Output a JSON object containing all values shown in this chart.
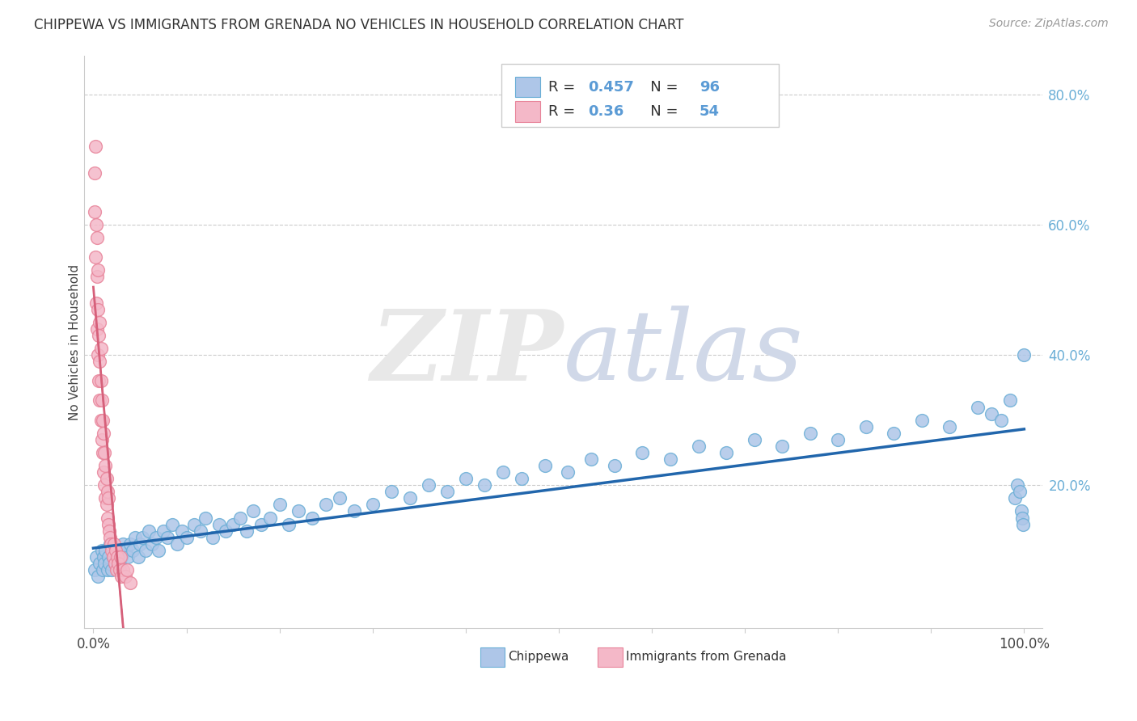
{
  "title": "CHIPPEWA VS IMMIGRANTS FROM GRENADA NO VEHICLES IN HOUSEHOLD CORRELATION CHART",
  "source_text": "Source: ZipAtlas.com",
  "ylabel": "No Vehicles in Household",
  "watermark": "ZIPatlas",
  "xlim": [
    -0.01,
    1.02
  ],
  "ylim": [
    -0.02,
    0.86
  ],
  "xticks": [
    0.0,
    0.1,
    0.2,
    0.3,
    0.4,
    0.5,
    0.6,
    0.7,
    0.8,
    0.9,
    1.0
  ],
  "xticklabels": [
    "0.0%",
    "",
    "",
    "",
    "",
    "",
    "",
    "",
    "",
    "",
    "100.0%"
  ],
  "yticks_right": [
    0.2,
    0.4,
    0.6,
    0.8
  ],
  "yticklabels_right": [
    "20.0%",
    "40.0%",
    "60.0%",
    "80.0%"
  ],
  "chippewa_color": "#aec6e8",
  "chippewa_edge_color": "#6aaed6",
  "grenada_color": "#f4b8c8",
  "grenada_edge_color": "#e8849a",
  "trend_blue": "#2166ac",
  "trend_pink": "#d6607a",
  "R_chippewa": 0.457,
  "N_chippewa": 96,
  "R_grenada": 0.36,
  "N_grenada": 54,
  "chippewa_x": [
    0.001,
    0.003,
    0.005,
    0.007,
    0.009,
    0.01,
    0.011,
    0.012,
    0.013,
    0.015,
    0.016,
    0.017,
    0.018,
    0.02,
    0.021,
    0.022,
    0.023,
    0.025,
    0.027,
    0.028,
    0.03,
    0.032,
    0.035,
    0.037,
    0.04,
    0.042,
    0.045,
    0.048,
    0.05,
    0.053,
    0.056,
    0.06,
    0.063,
    0.067,
    0.07,
    0.075,
    0.08,
    0.085,
    0.09,
    0.095,
    0.1,
    0.108,
    0.115,
    0.12,
    0.128,
    0.135,
    0.142,
    0.15,
    0.158,
    0.165,
    0.172,
    0.18,
    0.19,
    0.2,
    0.21,
    0.22,
    0.235,
    0.25,
    0.265,
    0.28,
    0.3,
    0.32,
    0.34,
    0.36,
    0.38,
    0.4,
    0.42,
    0.44,
    0.46,
    0.485,
    0.51,
    0.535,
    0.56,
    0.59,
    0.62,
    0.65,
    0.68,
    0.71,
    0.74,
    0.77,
    0.8,
    0.83,
    0.86,
    0.89,
    0.92,
    0.95,
    0.965,
    0.975,
    0.985,
    0.99,
    0.993,
    0.995,
    0.997,
    0.998,
    0.999,
    1.0
  ],
  "chippewa_y": [
    0.07,
    0.09,
    0.06,
    0.08,
    0.1,
    0.07,
    0.09,
    0.08,
    0.1,
    0.07,
    0.09,
    0.08,
    0.11,
    0.07,
    0.09,
    0.1,
    0.08,
    0.09,
    0.1,
    0.08,
    0.09,
    0.11,
    0.1,
    0.09,
    0.11,
    0.1,
    0.12,
    0.09,
    0.11,
    0.12,
    0.1,
    0.13,
    0.11,
    0.12,
    0.1,
    0.13,
    0.12,
    0.14,
    0.11,
    0.13,
    0.12,
    0.14,
    0.13,
    0.15,
    0.12,
    0.14,
    0.13,
    0.14,
    0.15,
    0.13,
    0.16,
    0.14,
    0.15,
    0.17,
    0.14,
    0.16,
    0.15,
    0.17,
    0.18,
    0.16,
    0.17,
    0.19,
    0.18,
    0.2,
    0.19,
    0.21,
    0.2,
    0.22,
    0.21,
    0.23,
    0.22,
    0.24,
    0.23,
    0.25,
    0.24,
    0.26,
    0.25,
    0.27,
    0.26,
    0.28,
    0.27,
    0.29,
    0.28,
    0.3,
    0.29,
    0.32,
    0.31,
    0.3,
    0.33,
    0.18,
    0.2,
    0.19,
    0.16,
    0.15,
    0.14,
    0.4
  ],
  "grenada_x": [
    0.001,
    0.001,
    0.002,
    0.002,
    0.003,
    0.003,
    0.004,
    0.004,
    0.004,
    0.005,
    0.005,
    0.005,
    0.006,
    0.006,
    0.007,
    0.007,
    0.007,
    0.008,
    0.008,
    0.008,
    0.009,
    0.009,
    0.01,
    0.01,
    0.011,
    0.011,
    0.012,
    0.012,
    0.013,
    0.013,
    0.014,
    0.014,
    0.015,
    0.015,
    0.016,
    0.016,
    0.017,
    0.018,
    0.019,
    0.02,
    0.021,
    0.022,
    0.023,
    0.024,
    0.025,
    0.026,
    0.027,
    0.028,
    0.029,
    0.03,
    0.032,
    0.034,
    0.036,
    0.04
  ],
  "grenada_y": [
    0.62,
    0.68,
    0.55,
    0.72,
    0.48,
    0.6,
    0.44,
    0.52,
    0.58,
    0.4,
    0.47,
    0.53,
    0.36,
    0.43,
    0.33,
    0.39,
    0.45,
    0.3,
    0.36,
    0.41,
    0.27,
    0.33,
    0.25,
    0.3,
    0.22,
    0.28,
    0.2,
    0.25,
    0.18,
    0.23,
    0.17,
    0.21,
    0.15,
    0.19,
    0.14,
    0.18,
    0.13,
    0.12,
    0.11,
    0.1,
    0.09,
    0.11,
    0.08,
    0.1,
    0.07,
    0.09,
    0.08,
    0.07,
    0.09,
    0.06,
    0.07,
    0.06,
    0.07,
    0.05
  ]
}
